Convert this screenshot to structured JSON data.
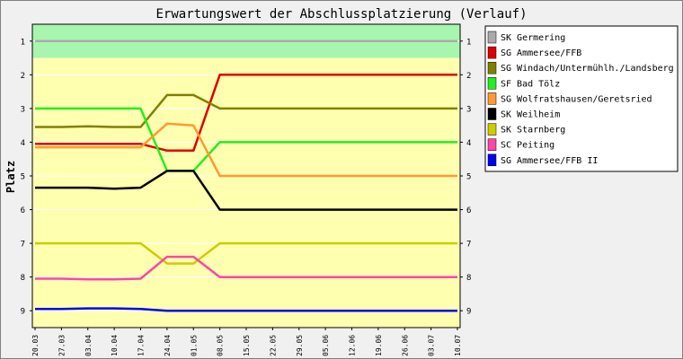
{
  "chart_data": {
    "type": "line",
    "title": "Erwartungswert der Abschlussplatzierung (Verlauf)",
    "ylabel": "Platz",
    "xlabel": "",
    "ylim": [
      0.5,
      9.5
    ],
    "y_inverted": true,
    "y_ticks": [
      "1",
      "2",
      "3",
      "4",
      "5",
      "6",
      "7",
      "8",
      "9"
    ],
    "grid": "horizontal",
    "legend_position": "right",
    "bands": [
      {
        "from": 0.5,
        "to": 1.5,
        "color": "#a8f5b0"
      },
      {
        "from": 1.5,
        "to": 9.5,
        "color": "#ffffb0"
      }
    ],
    "x": [
      "20.03",
      "27.03",
      "03.04",
      "10.04",
      "17.04",
      "24.04",
      "01.05",
      "08.05",
      "15.05",
      "22.05",
      "29.05",
      "05.06",
      "12.06",
      "19.06",
      "26.06",
      "03.07",
      "10.07"
    ],
    "series": [
      {
        "name": "SK Germering",
        "color": "#aaaaaa",
        "values": [
          1.0,
          1.0,
          1.0,
          1.0,
          1.0,
          1.0,
          1.0,
          1.0,
          1.0,
          1.0,
          1.0,
          1.0,
          1.0,
          1.0,
          1.0,
          1.0,
          1.0
        ]
      },
      {
        "name": "SG Ammersee/FFB",
        "color": "#dd0000",
        "values": [
          4.05,
          4.05,
          4.05,
          4.05,
          4.05,
          4.25,
          4.25,
          2.0,
          2.0,
          2.0,
          2.0,
          2.0,
          2.0,
          2.0,
          2.0,
          2.0,
          2.0
        ]
      },
      {
        "name": "SG Windach/Untermühlh./Landsberg",
        "color": "#808000",
        "values": [
          3.55,
          3.55,
          3.53,
          3.55,
          3.55,
          2.6,
          2.6,
          3.0,
          3.0,
          3.0,
          3.0,
          3.0,
          3.0,
          3.0,
          3.0,
          3.0,
          3.0
        ]
      },
      {
        "name": "SF Bad Tölz",
        "color": "#22ee22",
        "values": [
          3.0,
          3.0,
          3.0,
          3.0,
          3.0,
          4.85,
          4.85,
          4.0,
          4.0,
          4.0,
          4.0,
          4.0,
          4.0,
          4.0,
          4.0,
          4.0,
          4.0
        ]
      },
      {
        "name": "SG Wolfratshausen/Geretsried",
        "color": "#ff9933",
        "values": [
          4.15,
          4.15,
          4.15,
          4.15,
          4.15,
          3.45,
          3.5,
          5.0,
          5.0,
          5.0,
          5.0,
          5.0,
          5.0,
          5.0,
          5.0,
          5.0,
          5.0
        ]
      },
      {
        "name": "SK Weilheim",
        "color": "#000000",
        "values": [
          5.35,
          5.35,
          5.35,
          5.38,
          5.35,
          4.85,
          4.85,
          6.0,
          6.0,
          6.0,
          6.0,
          6.0,
          6.0,
          6.0,
          6.0,
          6.0,
          6.0
        ]
      },
      {
        "name": "SK Starnberg",
        "color": "#cccc00",
        "values": [
          7.0,
          7.0,
          7.0,
          7.0,
          7.0,
          7.6,
          7.6,
          7.0,
          7.0,
          7.0,
          7.0,
          7.0,
          7.0,
          7.0,
          7.0,
          7.0,
          7.0
        ]
      },
      {
        "name": "SC Peiting",
        "color": "#ff44aa",
        "values": [
          8.05,
          8.05,
          8.07,
          8.07,
          8.05,
          7.4,
          7.4,
          8.0,
          8.0,
          8.0,
          8.0,
          8.0,
          8.0,
          8.0,
          8.0,
          8.0,
          8.0
        ]
      },
      {
        "name": "SG Ammersee/FFB II",
        "color": "#0000ee",
        "values": [
          8.95,
          8.95,
          8.93,
          8.93,
          8.95,
          9.0,
          9.0,
          9.0,
          9.0,
          9.0,
          9.0,
          9.0,
          9.0,
          9.0,
          9.0,
          9.0,
          9.0
        ]
      }
    ]
  }
}
